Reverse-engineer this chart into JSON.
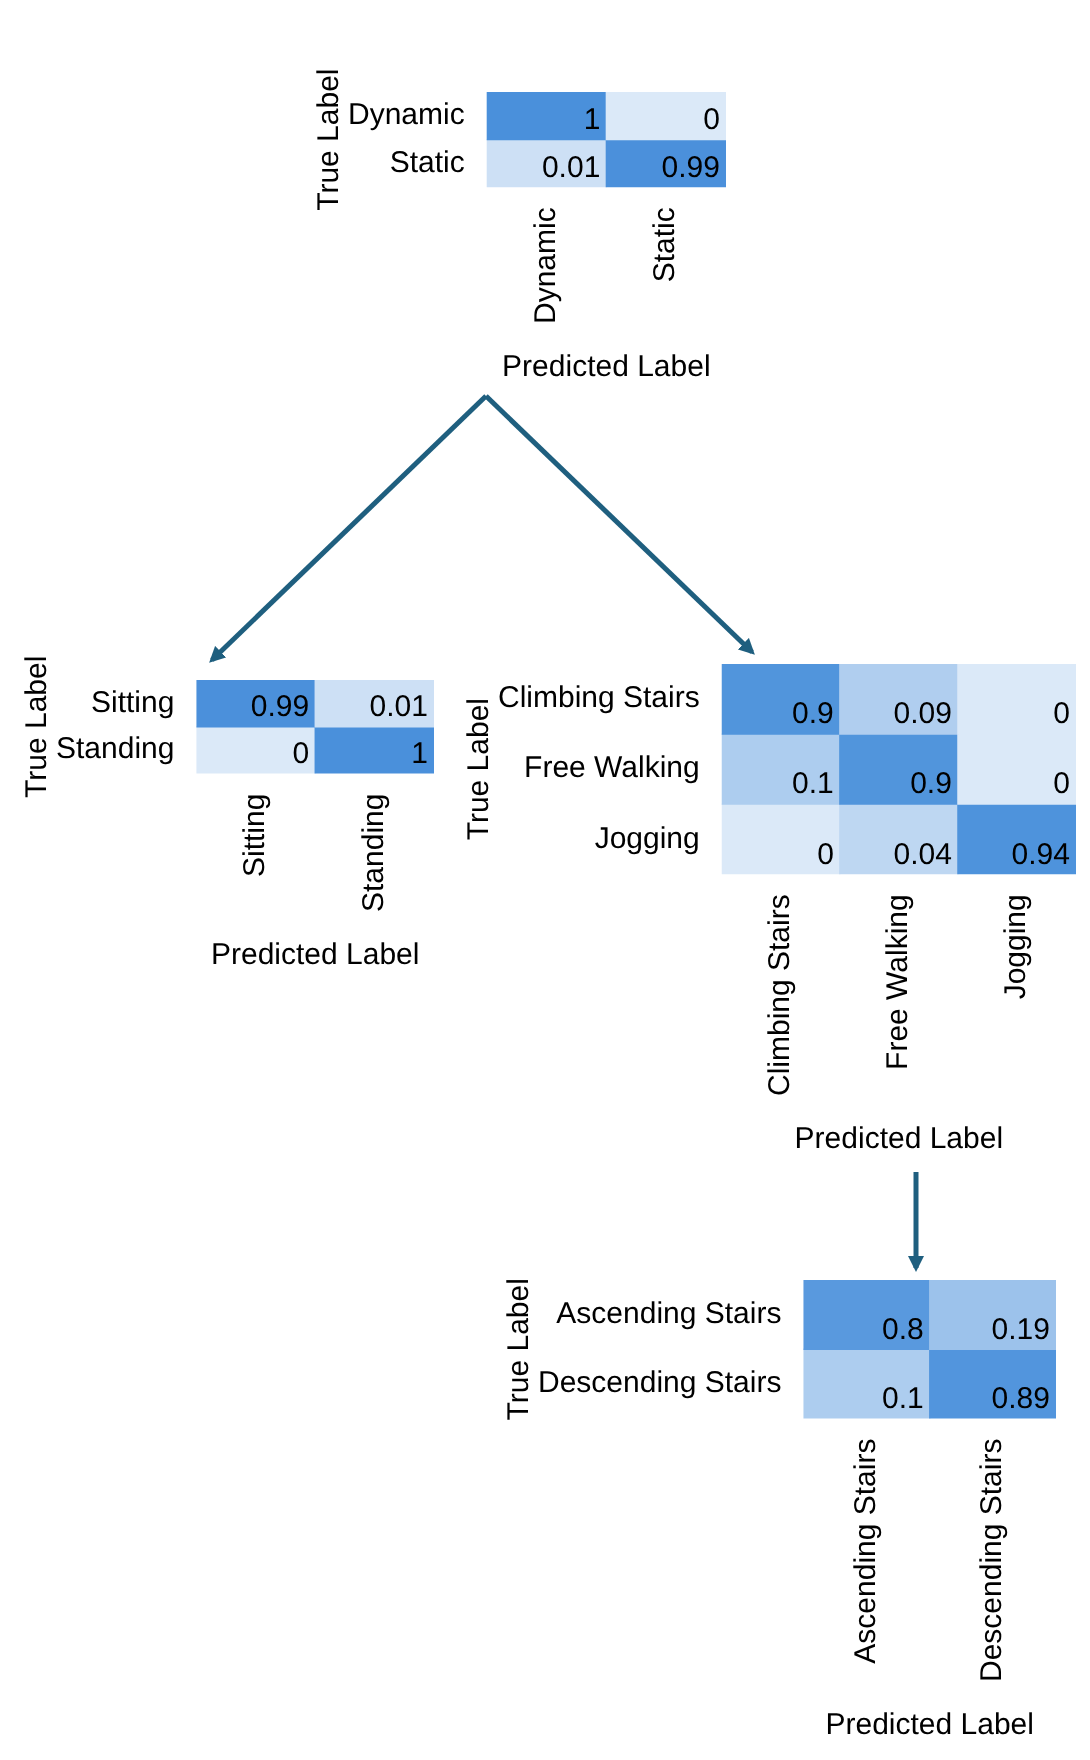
{
  "chart_data": [
    {
      "type": "heatmap",
      "xlabel": "Predicted Label",
      "ylabel": "True Label",
      "categories": [
        "Dynamic",
        "Static"
      ],
      "y_categories": [
        "Dynamic",
        "Static"
      ],
      "cells": [
        [
          1,
          0
        ],
        [
          0.01,
          0.99
        ]
      ],
      "data_labels": true
    },
    {
      "type": "heatmap",
      "xlabel": "Predicted Label",
      "ylabel": "True Label",
      "categories": [
        "Sitting",
        "Standing"
      ],
      "y_categories": [
        "Sitting",
        "Standing"
      ],
      "cells": [
        [
          0.99,
          0.01
        ],
        [
          0,
          1
        ]
      ],
      "data_labels": true
    },
    {
      "type": "heatmap",
      "xlabel": "Predicted Label",
      "ylabel": "True Label",
      "categories": [
        "Climbing Stairs",
        "Free Walking",
        "Jogging"
      ],
      "y_categories": [
        "Climbing Stairs",
        "Free Walking",
        "Jogging"
      ],
      "cells": [
        [
          0.9,
          0.09,
          0
        ],
        [
          0.1,
          0.9,
          0
        ],
        [
          0,
          0.04,
          0.94
        ]
      ],
      "data_labels": true
    },
    {
      "type": "heatmap",
      "xlabel": "Predicted Label",
      "ylabel": "True Label",
      "categories": [
        "Ascending Stairs",
        "Descending Stairs"
      ],
      "y_categories": [
        "Ascending Stairs",
        "Descending Stairs"
      ],
      "cells": [
        [
          0.8,
          0.19
        ],
        [
          0.1,
          0.89
        ]
      ],
      "data_labels": true
    }
  ]
}
